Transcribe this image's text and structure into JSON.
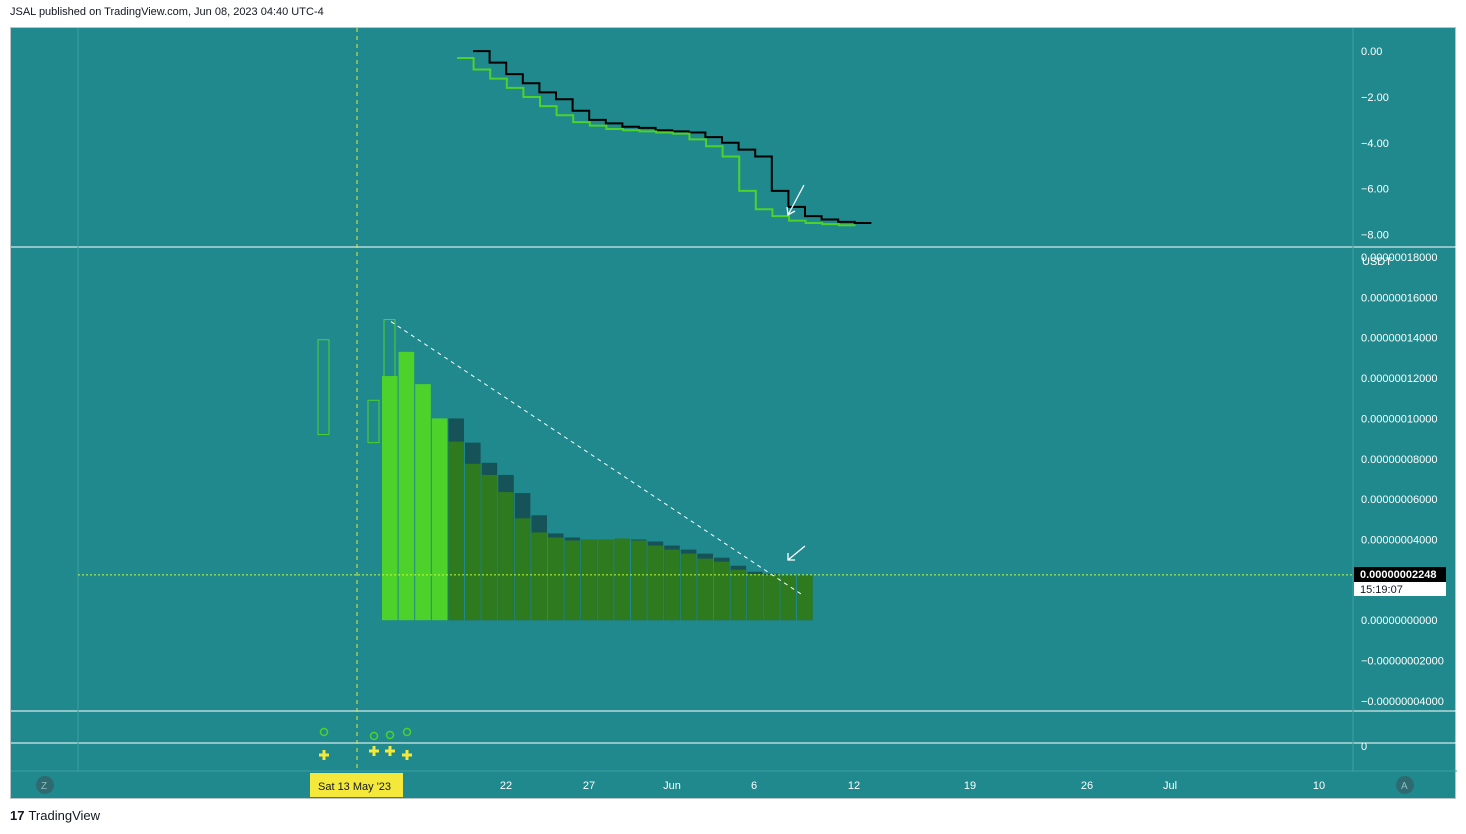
{
  "header": {
    "text": "JSAL published on TradingView.com, Jun 08, 2023 04:40 UTC-4"
  },
  "footer": {
    "logo_glyph": "17",
    "brand": "TradingView"
  },
  "chart_data": [
    {
      "type": "line",
      "pane": "indicator-top",
      "yticks": [
        "0.00",
        "−2.00",
        "−4.00",
        "−6.00",
        "−8.00"
      ],
      "ylim": [
        -8.2,
        0.4
      ],
      "series": [
        {
          "color": "#000000",
          "values": [
            0.0,
            -0.5,
            -1.0,
            -1.4,
            -1.8,
            -2.1,
            -2.6,
            -3.0,
            -3.15,
            -3.3,
            -3.35,
            -3.45,
            -3.5,
            -3.55,
            -3.75,
            -4.0,
            -4.3,
            -4.6,
            -6.1,
            -6.8,
            -7.2,
            -7.35,
            -7.45,
            -7.5
          ]
        },
        {
          "color": "#4cd22a",
          "values": [
            -0.3,
            -0.8,
            -1.2,
            -1.6,
            -2.0,
            -2.4,
            -2.8,
            -3.1,
            -3.25,
            -3.4,
            -3.45,
            -3.5,
            -3.55,
            -3.6,
            -3.85,
            -4.15,
            -4.6,
            -6.1,
            -6.9,
            -7.2,
            -7.4,
            -7.5,
            -7.55,
            -7.6
          ]
        }
      ]
    },
    {
      "type": "bar",
      "pane": "main",
      "unit_label": "USDT",
      "yticks": [
        "0.00000018000",
        "0.00000016000",
        "0.00000014000",
        "0.00000012000",
        "0.00000010000",
        "0.00000008000",
        "0.00000006000",
        "0.00000004000",
        "0.00000002000",
        "0.00000000000",
        "−0.00000002000",
        "−0.00000004000"
      ],
      "ylim": [
        -4.5e-08,
        1.8e-07
      ],
      "bright_bars": [
        1.21e-07,
        1.33e-07,
        1.17e-07,
        1e-07
      ],
      "dark_bars": [
        1e-07,
        8.8e-08,
        7.8e-08,
        7.2e-08,
        6.3e-08,
        5.2e-08,
        4.3e-08,
        4.1e-08,
        4e-08,
        4e-08,
        4e-08,
        4e-08,
        3.9e-08,
        3.7e-08,
        3.5e-08,
        3.3e-08,
        3.1e-08,
        2.7e-08,
        2.4e-08,
        2.3e-08,
        2.25e-08,
        2.25e-08
      ],
      "fill_bars": [
        8.85e-08,
        7.75e-08,
        7.2e-08,
        6.35e-08,
        5.05e-08,
        4.35e-08,
        4.1e-08,
        3.95e-08,
        4e-08,
        4e-08,
        4.05e-08,
        3.95e-08,
        3.7e-08,
        3.5e-08,
        3.3e-08,
        3.05e-08,
        2.9e-08,
        2.5e-08,
        2.3e-08,
        2.25e-08,
        2.25e-08,
        2.25e-08
      ],
      "outline_candles": [
        {
          "open": 9.2e-08,
          "close": 1.39e-07
        },
        {
          "open": 8.8e-08,
          "close": 1.09e-07
        },
        {
          "open": 9.7e-08,
          "close": 1.49e-07
        }
      ],
      "price_line": {
        "label": "0.00000002248",
        "countdown": "15:19:07",
        "value": 2.248e-08
      },
      "trendline": {
        "from": 1.48e-07,
        "to": 1.2e-08
      }
    },
    {
      "type": "scatter",
      "pane": "indicator-bottom",
      "ytick": "0",
      "plus_markers": 4,
      "circle_markers": 4
    }
  ],
  "xaxis": {
    "labels": [
      "22",
      "27",
      "Jun",
      "6",
      "12",
      "19",
      "26",
      "Jul",
      "10"
    ],
    "crosshair_label": "Sat 13 May '23",
    "left_button": "Z",
    "right_button": "A"
  },
  "colors": {
    "background": "#20898d",
    "bright_green": "#4cd22a",
    "dark_green": "#2d7a1f",
    "dark_teal": "#165359",
    "crosshair": "#e8e83a",
    "price_line": "#bfff3a",
    "marker_yellow": "#f4e93a"
  }
}
